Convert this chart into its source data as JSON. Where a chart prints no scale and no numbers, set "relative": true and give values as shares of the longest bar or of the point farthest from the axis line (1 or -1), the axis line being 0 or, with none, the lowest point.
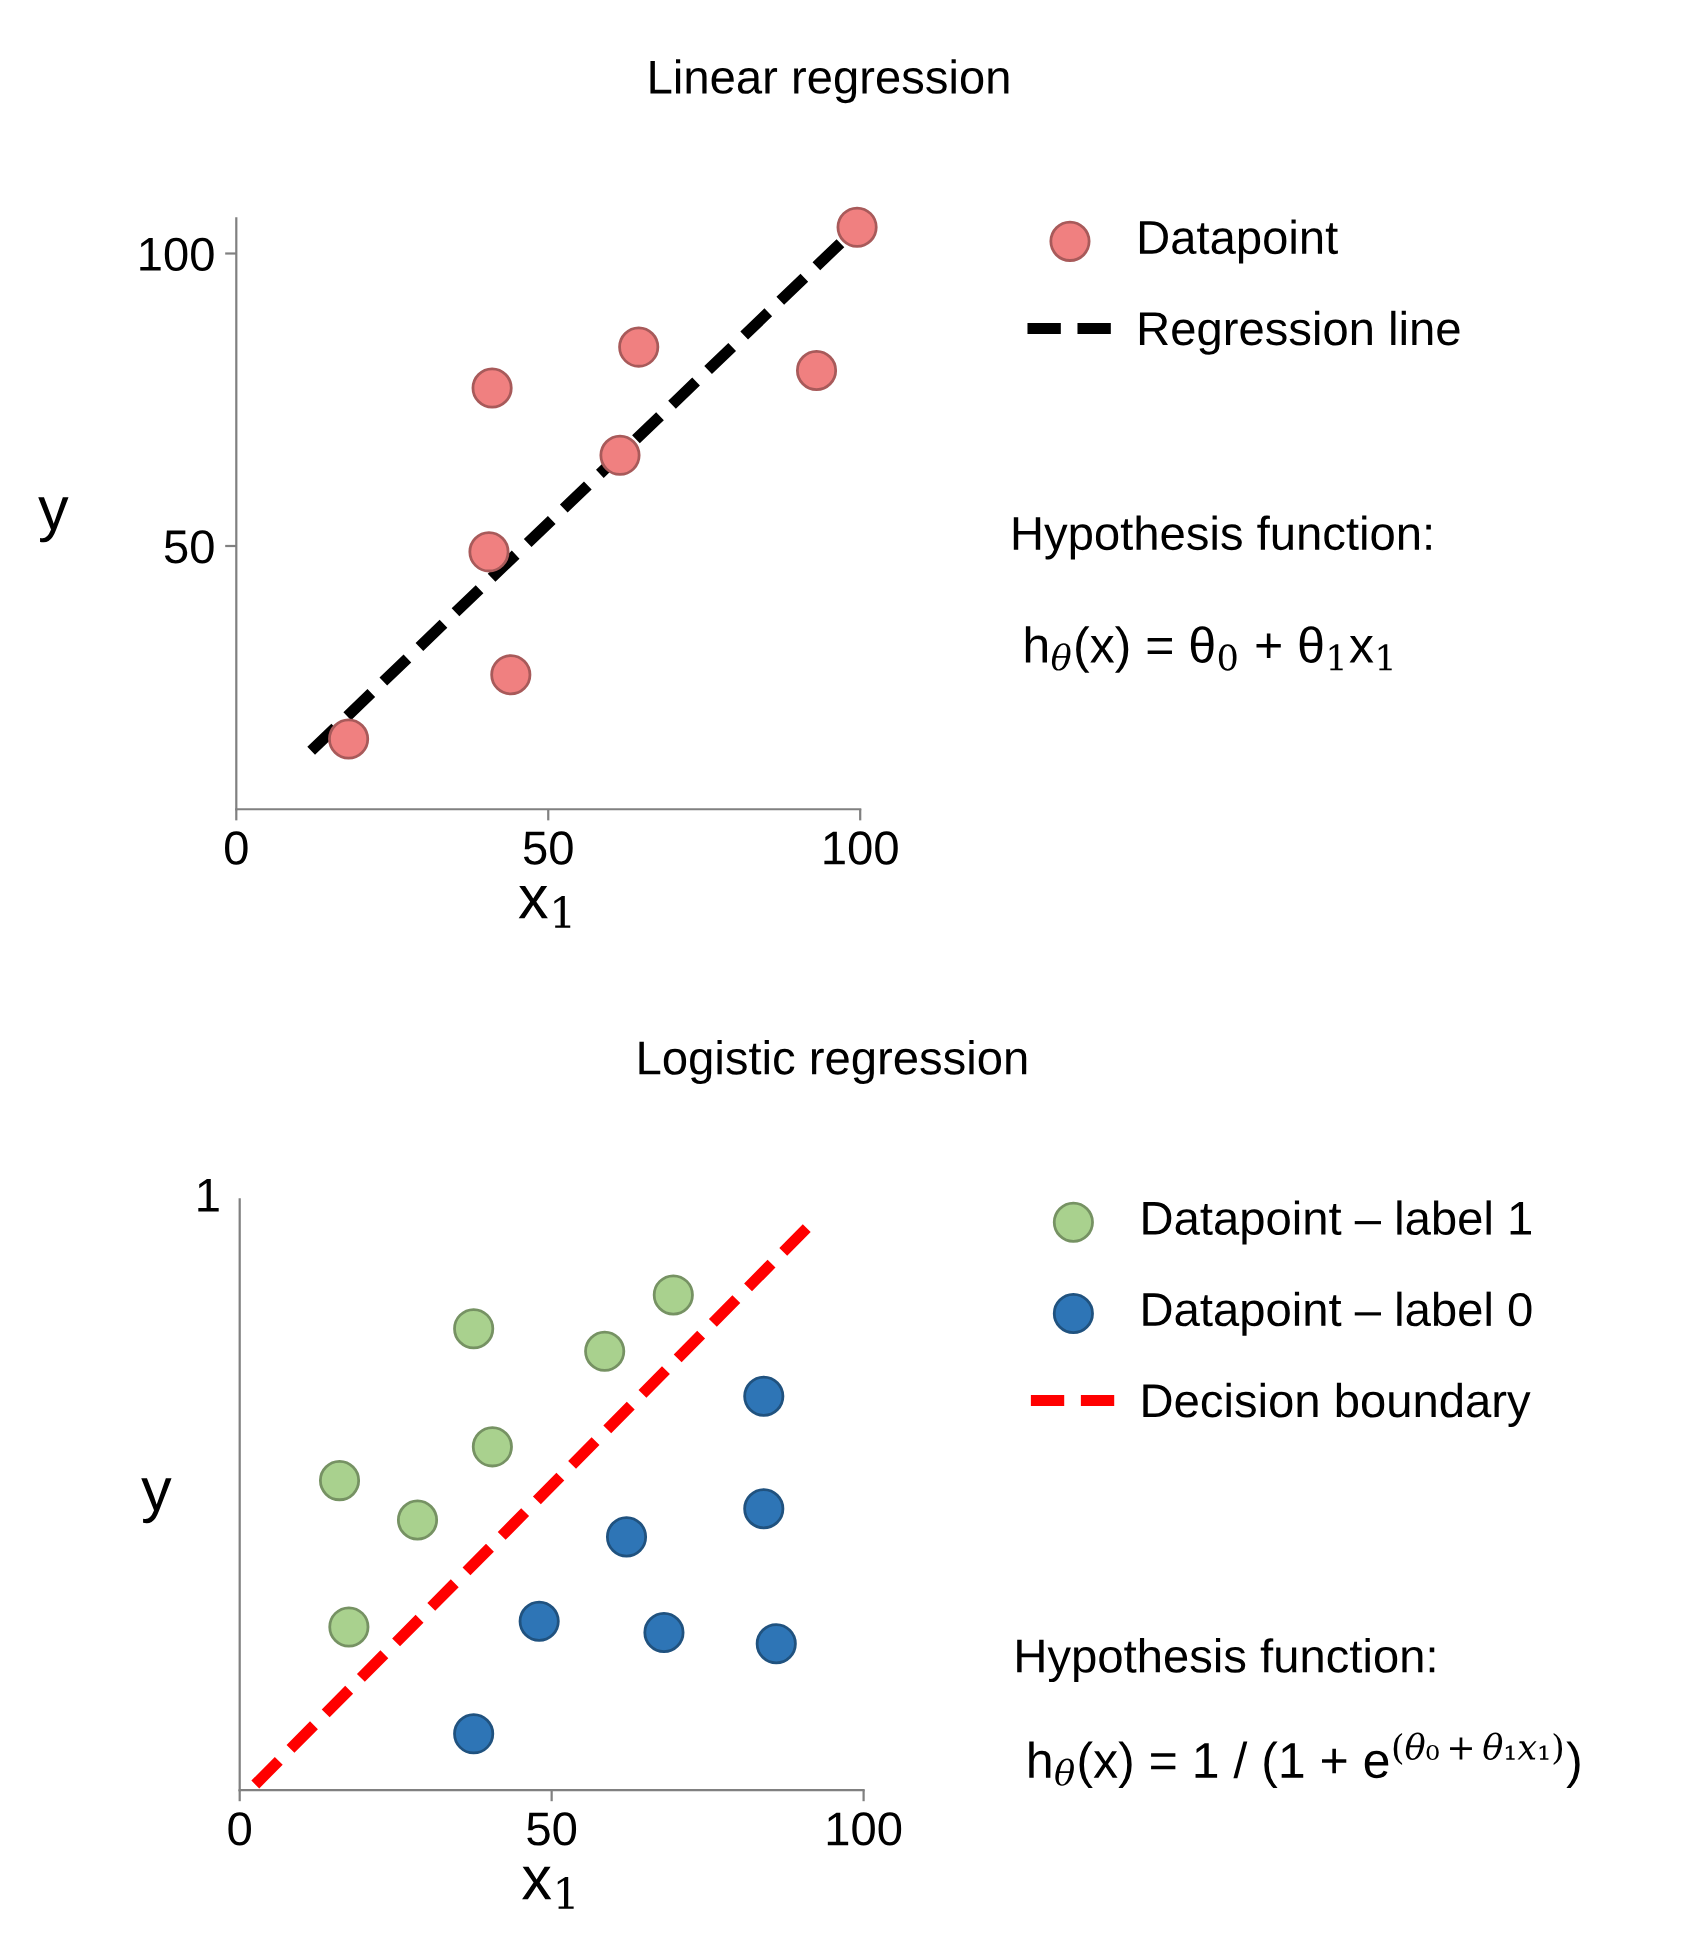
{
  "chart_data": [
    {
      "type": "scatter",
      "title": "Linear regression",
      "xlabel": "x$_{1}$",
      "ylabel": "y",
      "xlim": [
        0,
        100
      ],
      "ylim": [
        5,
        106
      ],
      "xticks": [
        0,
        50,
        100
      ],
      "yticks": [
        50,
        100
      ],
      "series": [
        {
          "name": "Datapoint",
          "color": "#f08080",
          "marker": "circle",
          "x": [
            18,
            40.5,
            41,
            44,
            61.5,
            64.5,
            93,
            99.5
          ],
          "values": [
            17,
            49,
            77,
            28,
            65.5,
            84,
            80,
            104.5
          ]
        },
        {
          "name": "Regression line",
          "type": "line",
          "color": "#000000",
          "line_style": "dashed",
          "x": [
            12,
            99.5
          ],
          "values": [
            15,
            104.5
          ]
        }
      ],
      "legend": "right",
      "grid": false,
      "annotations": [
        "Hypothesis function:",
        "h$_{θ}$(x) = θ$_{0}$ + θ$_{1}$x$_{1}$"
      ]
    },
    {
      "type": "scatter",
      "title": "Logistic regression",
      "xlabel": "x$_{1}$",
      "ylabel": "y",
      "xlim": [
        0,
        100
      ],
      "relative": true,
      "xticks": [
        0,
        50,
        100
      ],
      "series": [
        {
          "name": "Datapoint – label 1",
          "color": "#a9d18e",
          "marker": "circle",
          "x": [
            16,
            28.5,
            37.5,
            40.5,
            58.5,
            69.5,
            17.5
          ],
          "values": [
            0.55,
            0.48,
            0.82,
            0.61,
            0.78,
            0.88,
            0.29
          ]
        },
        {
          "name": "Datapoint – label 0",
          "color": "#2e75b6",
          "marker": "circle",
          "x": [
            84,
            84,
            62,
            48,
            68,
            86,
            37.5
          ],
          "values": [
            0.7,
            0.5,
            0.45,
            0.3,
            0.28,
            0.26,
            0.1
          ]
        },
        {
          "name": "Decision boundary",
          "type": "line",
          "color": "#ff0000",
          "line_style": "dashed",
          "x": [
            2.5,
            91
          ],
          "values": [
            0.01,
            1.0
          ]
        }
      ],
      "legend": "right",
      "grid": false,
      "annotations": [
        "1",
        "Hypothesis function:",
        "h$_{θ}$(x) = 1 / (1 + e$^{(θ₀+θ₁x₁)}$)"
      ]
    }
  ]
}
